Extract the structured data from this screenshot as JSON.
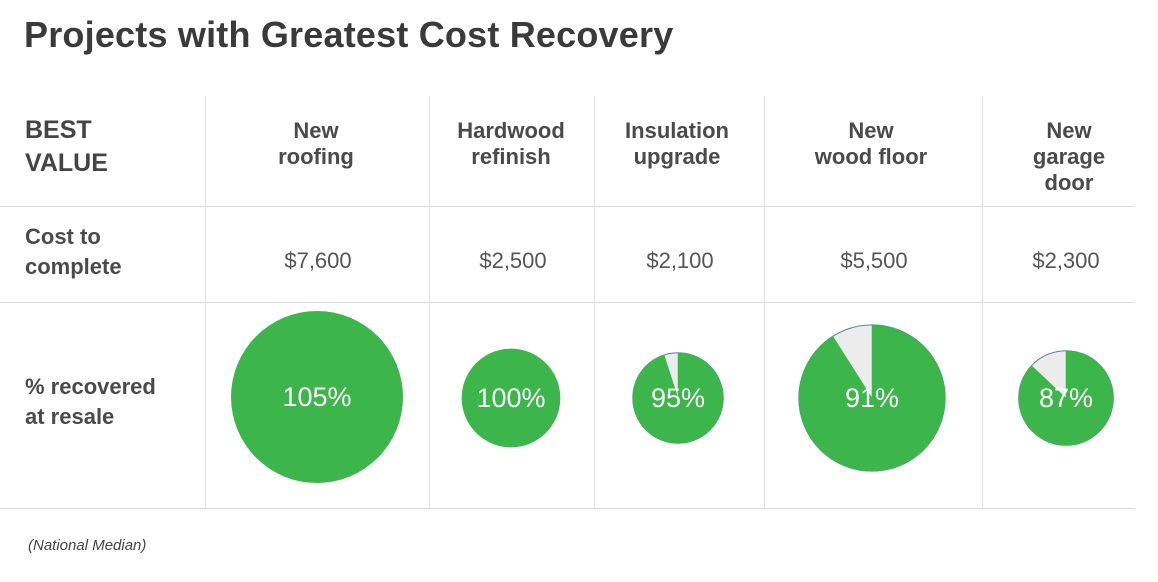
{
  "title": "Projects with Greatest Cost Recovery",
  "row_labels": {
    "best_value": "BEST\nVALUE",
    "cost": "Cost to\ncomplete",
    "recovered": "% recovered\nat resale"
  },
  "footnote": "(National Median)",
  "colors": {
    "green": "#3cb54a",
    "remainder": "#ececec",
    "remainder_edge": "#5a7fb0",
    "label_text": "#ffffff"
  },
  "chart_data": {
    "type": "table",
    "columns": [
      {
        "project": "New\nroofing",
        "cost": "$7,600",
        "cost_value": 7600,
        "recovered_label": "105%",
        "recovered": 105
      },
      {
        "project": "Hardwood\nrefinish",
        "cost": "$2,500",
        "cost_value": 2500,
        "recovered_label": "100%",
        "recovered": 100
      },
      {
        "project": "Insulation\nupgrade",
        "cost": "$2,100",
        "cost_value": 2100,
        "recovered_label": "95%",
        "recovered": 95
      },
      {
        "project": "New\nwood floor",
        "cost": "$5,500",
        "cost_value": 5500,
        "recovered_label": "91%",
        "recovered": 91
      },
      {
        "project": "New\ngarage door",
        "cost": "$2,300",
        "cost_value": 2300,
        "recovered_label": "87%",
        "recovered": 87
      }
    ]
  }
}
